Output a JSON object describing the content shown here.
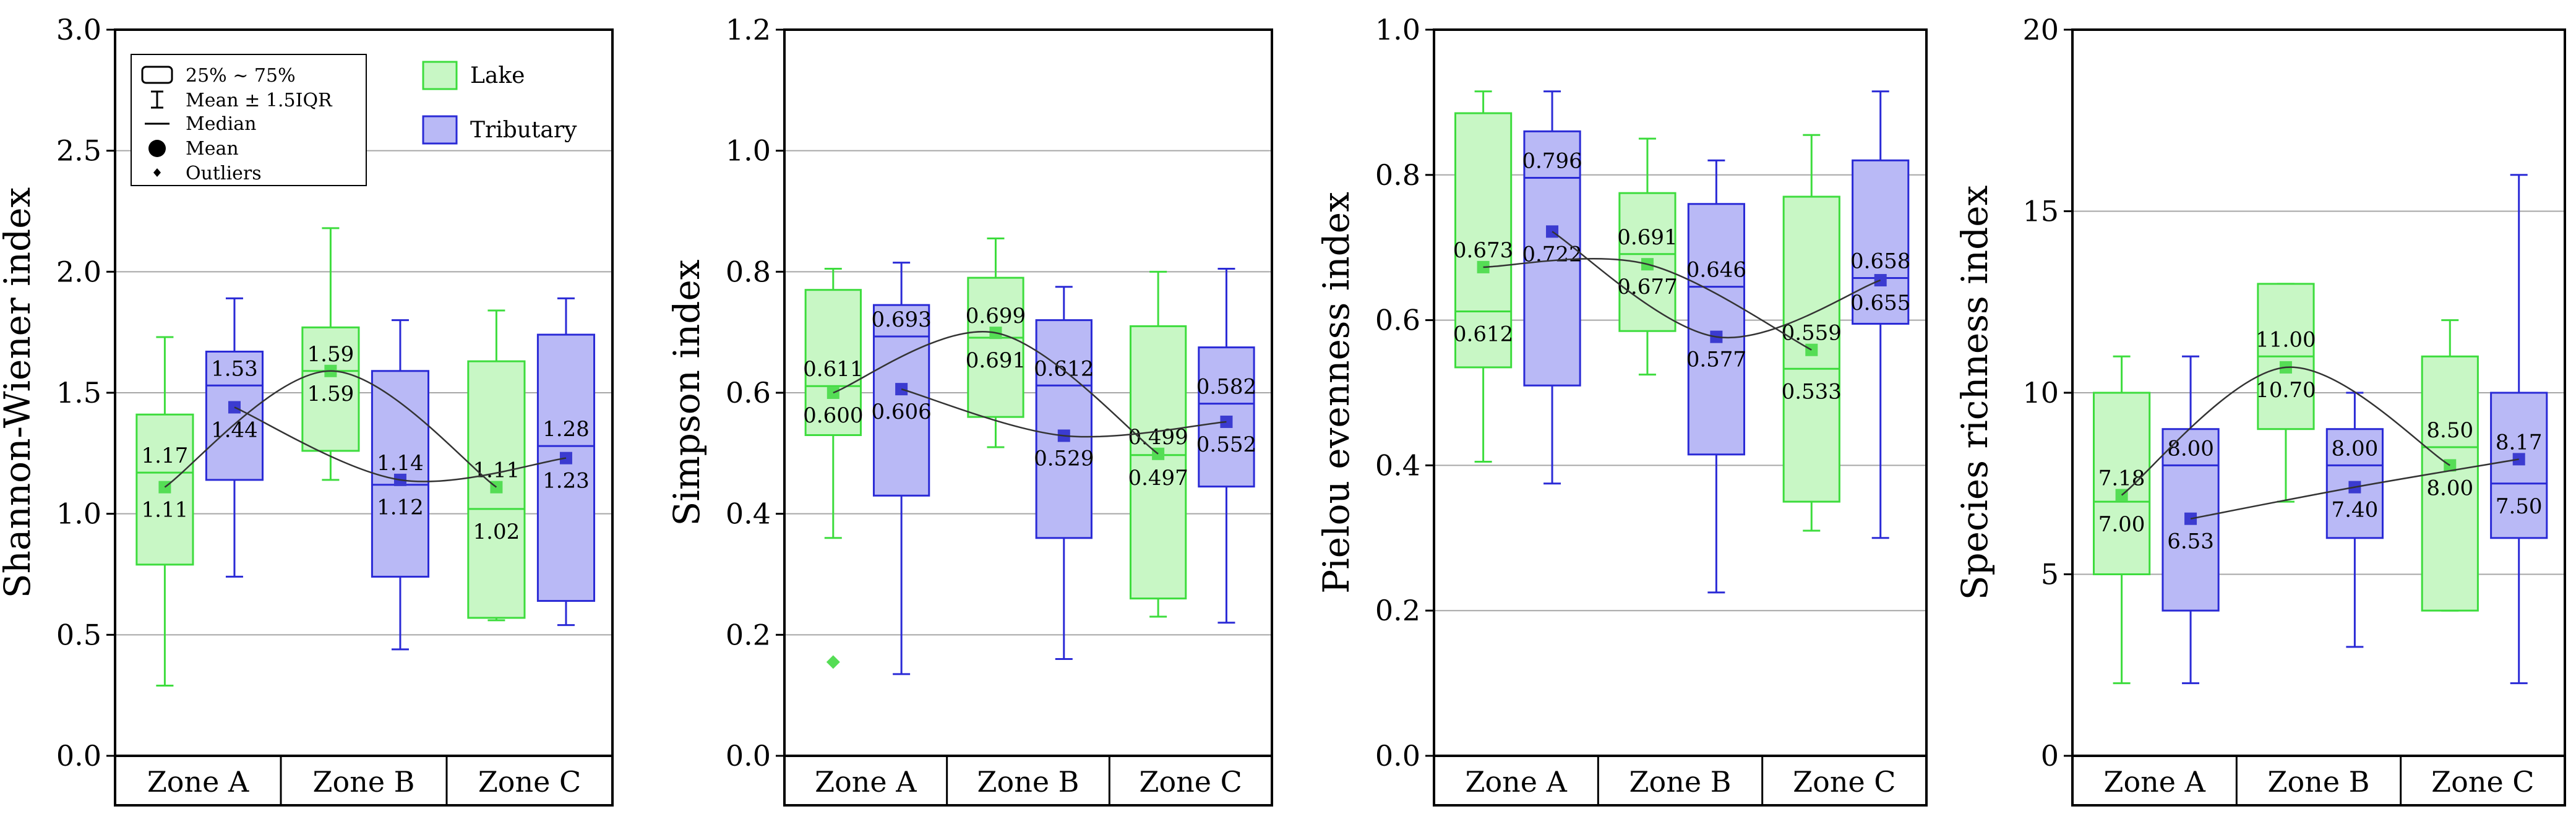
{
  "colors": {
    "lake_fill": "#c8f7c5",
    "lake_stroke": "#3ddc3d",
    "tributary_fill": "#b9b9f6",
    "tributary_stroke": "#2a2ad6",
    "lake_mean": "#55dd55",
    "tributary_mean": "#3b3bd0",
    "gridline": "#a6a6a6",
    "axis": "#000000"
  },
  "legend": {
    "box_label": "25% ~ 75%",
    "whisker_label": "Mean ± 1.5IQR",
    "median_label": "Median",
    "mean_label": "Mean",
    "outlier_label": "Outliers"
  },
  "chart_data": [
    {
      "type": "box",
      "ylabel": "Shannon-Wiener index",
      "ylim": [
        0,
        3.0
      ],
      "yticks": [
        "0.0",
        "0.5",
        "1.0",
        "1.5",
        "2.0",
        "2.5",
        "3.0"
      ],
      "categories": [
        "Zone A",
        "Zone B",
        "Zone C"
      ],
      "series": [
        {
          "name": "Lake",
          "boxes": [
            {
              "q1": 0.79,
              "q3": 1.41,
              "median": 1.17,
              "mean": 1.11,
              "lo": 0.29,
              "hi": 1.73,
              "outliers": [],
              "label_top": "1.17",
              "label_bottom": "1.11"
            },
            {
              "q1": 1.26,
              "q3": 1.77,
              "median": 1.59,
              "mean": 1.59,
              "lo": 1.14,
              "hi": 2.18,
              "outliers": [],
              "label_top": "1.59",
              "label_bottom": "1.59"
            },
            {
              "q1": 0.57,
              "q3": 1.63,
              "median": 1.02,
              "mean": 1.11,
              "lo": 0.56,
              "hi": 1.84,
              "outliers": [],
              "label_top": "1.11",
              "label_bottom": "1.02"
            }
          ]
        },
        {
          "name": "Tributary",
          "boxes": [
            {
              "q1": 1.14,
              "q3": 1.67,
              "median": 1.53,
              "mean": 1.44,
              "lo": 0.74,
              "hi": 1.89,
              "outliers": [],
              "label_top": "1.53",
              "label_bottom": "1.44"
            },
            {
              "q1": 0.74,
              "q3": 1.59,
              "median": 1.12,
              "mean": 1.14,
              "lo": 0.44,
              "hi": 1.8,
              "outliers": [],
              "label_top": "1.14",
              "label_bottom": "1.12"
            },
            {
              "q1": 0.64,
              "q3": 1.74,
              "median": 1.28,
              "mean": 1.23,
              "lo": 0.54,
              "hi": 1.89,
              "outliers": [],
              "label_top": "1.28",
              "label_bottom": "1.23"
            }
          ]
        }
      ]
    },
    {
      "type": "box",
      "ylabel": "Simpson  index",
      "ylim": [
        0,
        1.2
      ],
      "yticks": [
        "0.0",
        "0.2",
        "0.4",
        "0.6",
        "0.8",
        "1.0",
        "1.2"
      ],
      "categories": [
        "Zone A",
        "Zone B",
        "Zone C"
      ],
      "series": [
        {
          "name": "Lake",
          "boxes": [
            {
              "q1": 0.53,
              "q3": 0.77,
              "median": 0.611,
              "mean": 0.6,
              "lo": 0.36,
              "hi": 0.805,
              "outliers": [
                0.155
              ],
              "label_top": "0.611",
              "label_bottom": "0.600"
            },
            {
              "q1": 0.56,
              "q3": 0.79,
              "median": 0.691,
              "mean": 0.699,
              "lo": 0.51,
              "hi": 0.855,
              "outliers": [],
              "label_top": "0.699",
              "label_bottom": "0.691"
            },
            {
              "q1": 0.26,
              "q3": 0.71,
              "median": 0.497,
              "mean": 0.499,
              "lo": 0.23,
              "hi": 0.8,
              "outliers": [],
              "label_top": "0.499",
              "label_bottom": "0.497"
            }
          ]
        },
        {
          "name": "Tributary",
          "boxes": [
            {
              "q1": 0.43,
              "q3": 0.745,
              "median": 0.693,
              "mean": 0.606,
              "lo": 0.135,
              "hi": 0.815,
              "outliers": [],
              "label_top": "0.693",
              "label_bottom": "0.606"
            },
            {
              "q1": 0.36,
              "q3": 0.72,
              "median": 0.612,
              "mean": 0.529,
              "lo": 0.16,
              "hi": 0.775,
              "outliers": [],
              "label_top": "0.612",
              "label_bottom": "0.529"
            },
            {
              "q1": 0.445,
              "q3": 0.675,
              "median": 0.582,
              "mean": 0.552,
              "lo": 0.22,
              "hi": 0.805,
              "outliers": [],
              "label_top": "0.582",
              "label_bottom": "0.552"
            }
          ]
        }
      ]
    },
    {
      "type": "box",
      "ylabel": "Pielou evenness index",
      "ylim": [
        0,
        1.0
      ],
      "yticks": [
        "0.0",
        "0.2",
        "0.4",
        "0.6",
        "0.8",
        "1.0"
      ],
      "categories": [
        "Zone A",
        "Zone B",
        "Zone C"
      ],
      "series": [
        {
          "name": "Lake",
          "boxes": [
            {
              "q1": 0.535,
              "q3": 0.885,
              "median": 0.612,
              "mean": 0.673,
              "lo": 0.405,
              "hi": 0.915,
              "outliers": [],
              "label_top": "0.673",
              "label_bottom": "0.612"
            },
            {
              "q1": 0.585,
              "q3": 0.775,
              "median": 0.691,
              "mean": 0.677,
              "lo": 0.525,
              "hi": 0.85,
              "outliers": [],
              "label_top": "0.691",
              "label_bottom": "0.677"
            },
            {
              "q1": 0.35,
              "q3": 0.77,
              "median": 0.533,
              "mean": 0.559,
              "lo": 0.31,
              "hi": 0.855,
              "outliers": [],
              "label_top": "0.559",
              "label_bottom": "0.533"
            }
          ]
        },
        {
          "name": "Tributary",
          "boxes": [
            {
              "q1": 0.51,
              "q3": 0.86,
              "median": 0.796,
              "mean": 0.722,
              "lo": 0.375,
              "hi": 0.915,
              "outliers": [],
              "label_top": "0.796",
              "label_bottom": "0.722"
            },
            {
              "q1": 0.415,
              "q3": 0.76,
              "median": 0.646,
              "mean": 0.577,
              "lo": 0.225,
              "hi": 0.82,
              "outliers": [],
              "label_top": "0.646",
              "label_bottom": "0.577"
            },
            {
              "q1": 0.595,
              "q3": 0.82,
              "median": 0.658,
              "mean": 0.655,
              "lo": 0.3,
              "hi": 0.915,
              "outliers": [],
              "label_top": "0.658",
              "label_bottom": "0.655"
            }
          ]
        }
      ]
    },
    {
      "type": "box",
      "ylabel": "Species richness index",
      "ylim": [
        0,
        20
      ],
      "yticks": [
        "0",
        "5",
        "10",
        "15",
        "20"
      ],
      "categories": [
        "Zone A",
        "Zone B",
        "Zone C"
      ],
      "series": [
        {
          "name": "Lake",
          "boxes": [
            {
              "q1": 5.0,
              "q3": 10.0,
              "median": 7.0,
              "mean": 7.18,
              "lo": 2.0,
              "hi": 11.0,
              "outliers": [],
              "label_top": "7.18",
              "label_bottom": "7.00"
            },
            {
              "q1": 9.0,
              "q3": 13.0,
              "median": 11.0,
              "mean": 10.7,
              "lo": 7.0,
              "hi": 13.0,
              "outliers": [],
              "label_top": "11.00",
              "label_bottom": "10.70"
            },
            {
              "q1": 4.0,
              "q3": 11.0,
              "median": 8.5,
              "mean": 8.0,
              "lo": 4.0,
              "hi": 12.0,
              "outliers": [],
              "label_top": "8.50",
              "label_bottom": "8.00"
            }
          ]
        },
        {
          "name": "Tributary",
          "boxes": [
            {
              "q1": 4.0,
              "q3": 9.0,
              "median": 8.0,
              "mean": 6.53,
              "lo": 2.0,
              "hi": 11.0,
              "outliers": [],
              "label_top": "8.00",
              "label_bottom": "6.53"
            },
            {
              "q1": 6.0,
              "q3": 9.0,
              "median": 8.0,
              "mean": 7.4,
              "lo": 3.0,
              "hi": 10.0,
              "outliers": [],
              "label_top": "8.00",
              "label_bottom": "7.40"
            },
            {
              "q1": 6.0,
              "q3": 10.0,
              "median": 7.5,
              "mean": 8.17,
              "lo": 2.0,
              "hi": 16.0,
              "outliers": [],
              "label_top": "8.17",
              "label_bottom": "7.50"
            }
          ]
        }
      ]
    }
  ]
}
